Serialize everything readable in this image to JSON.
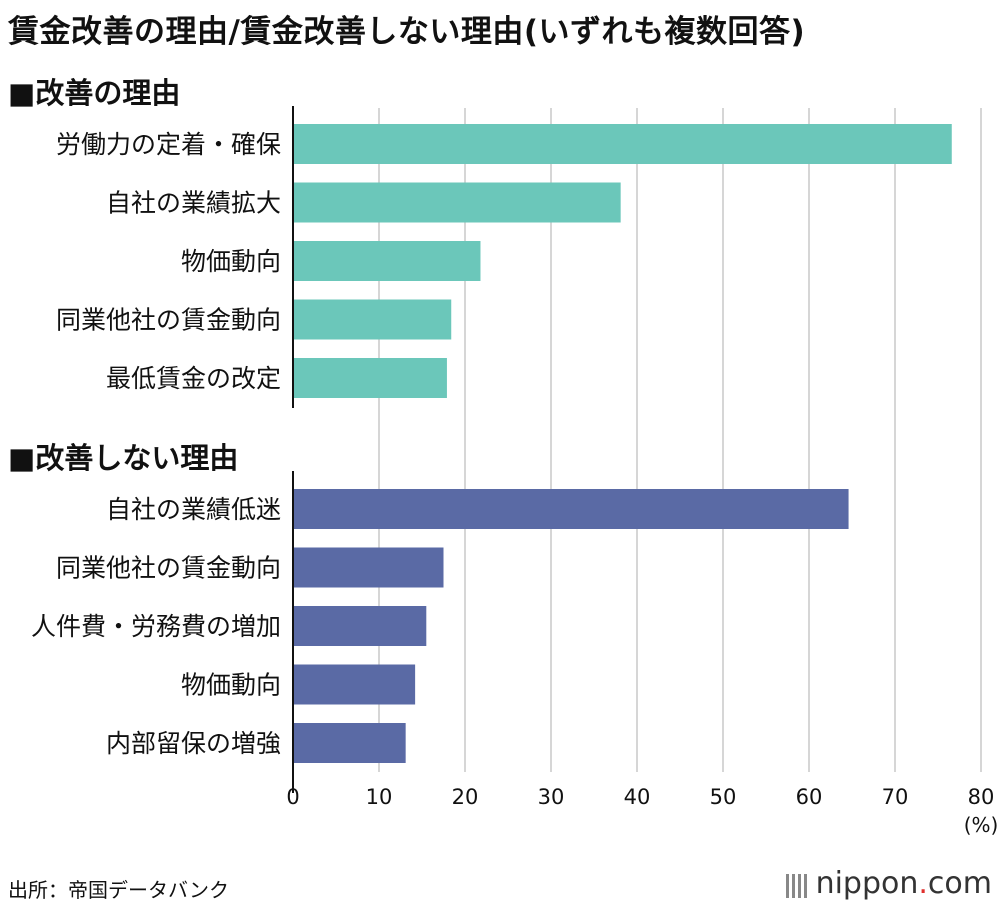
{
  "title": "賃金改善の理由/賃金改善しない理由(いずれも複数回答)",
  "chart_data": [
    {
      "type": "bar",
      "orientation": "horizontal",
      "heading": "■改善の理由",
      "color": "#6bc7ba",
      "categories": [
        "労働力の定着・確保",
        "自社の業績拡大",
        "物価動向",
        "同業他社の賃金動向",
        "最低賃金の改定"
      ],
      "values": [
        76.6,
        38.1,
        21.8,
        18.4,
        17.9
      ],
      "xlim": [
        0,
        80
      ],
      "grid": true
    },
    {
      "type": "bar",
      "orientation": "horizontal",
      "heading": "■改善しない理由",
      "color": "#5a6aa5",
      "categories": [
        "自社の業績低迷",
        "同業他社の賃金動向",
        "人件費・労務費の増加",
        "物価動向",
        "内部留保の増強"
      ],
      "values": [
        64.6,
        17.5,
        15.5,
        14.2,
        13.1
      ],
      "xlim": [
        0,
        80
      ],
      "grid": true
    }
  ],
  "x_ticks": [
    "0",
    "10",
    "20",
    "30",
    "40",
    "50",
    "60",
    "70",
    "80"
  ],
  "x_unit": "(%)",
  "source": "出所：帝国データバンク",
  "logo": {
    "name": "nippon",
    "dot": ".",
    "tld": "com"
  }
}
